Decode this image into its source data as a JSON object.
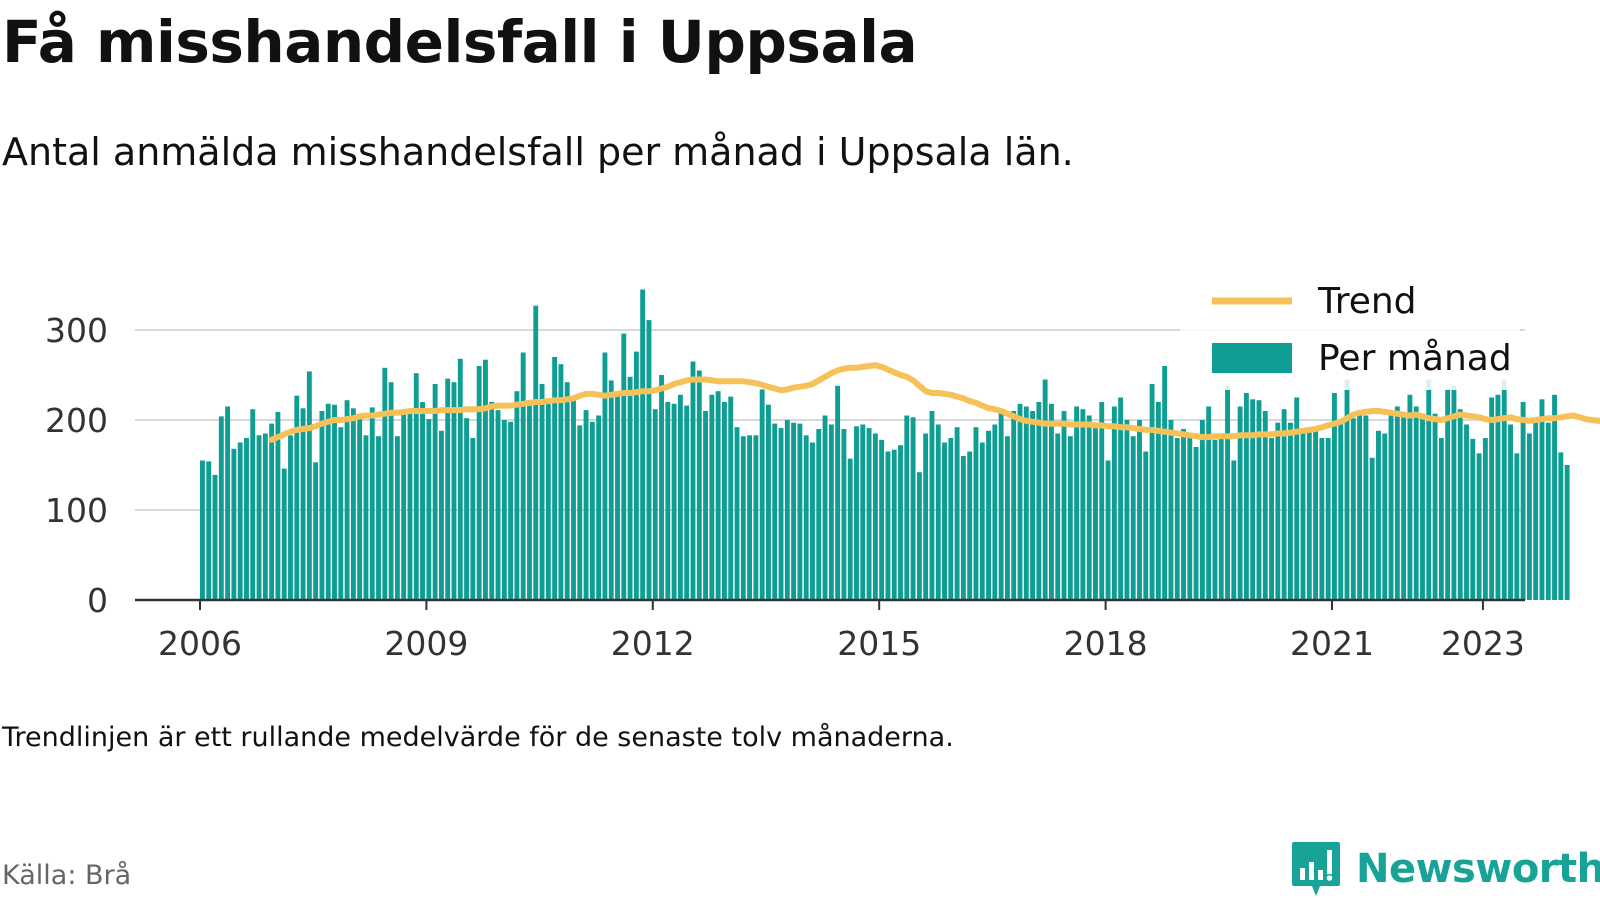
{
  "title": "Få misshandelsfall i Uppsala",
  "subtitle": "Antal anmälda misshandelsfall per månad i Uppsala län.",
  "note": "Trendlinjen är ett rullande medelvärde för de senaste tolv månaderna.",
  "source": "Källa: Brå",
  "brand": {
    "name": "Newsworthy",
    "icon": "newsworthy-logo-icon"
  },
  "colors": {
    "bars": "#0f9e94",
    "trend": "#f7c15a",
    "grid": "#d8d8d8",
    "axis": "#333333",
    "brand": "#17a398"
  },
  "chart_data": {
    "type": "bar",
    "title": "Få misshandelsfall i Uppsala",
    "subtitle": "Antal anmälda misshandelsfall per månad i Uppsala län.",
    "xlabel": "",
    "ylabel": "",
    "x_ticks": [
      "2006",
      "2009",
      "2012",
      "2015",
      "2018",
      "2021",
      "2023"
    ],
    "y_ticks": [
      "0",
      "100",
      "200",
      "300"
    ],
    "ylim": [
      0,
      345
    ],
    "start_month": "2006-01",
    "grid": true,
    "legend": {
      "position": "top-right",
      "entries": [
        "Trend",
        "Per månad"
      ]
    },
    "series": [
      {
        "name": "Per månad",
        "type": "bar",
        "color": "#0f9e94",
        "values": [
          155,
          154,
          139,
          204,
          215,
          168,
          175,
          180,
          212,
          183,
          185,
          196,
          209,
          146,
          183,
          227,
          213,
          254,
          153,
          210,
          218,
          217,
          192,
          222,
          213,
          207,
          183,
          214,
          182,
          258,
          242,
          182,
          206,
          211,
          252,
          220,
          201,
          240,
          188,
          246,
          242,
          268,
          202,
          180,
          260,
          267,
          220,
          211,
          200,
          198,
          232,
          275,
          220,
          327,
          240,
          218,
          270,
          262,
          242,
          225,
          194,
          211,
          198,
          205,
          275,
          244,
          230,
          296,
          248,
          276,
          345,
          311,
          212,
          250,
          220,
          218,
          228,
          216,
          265,
          255,
          210,
          228,
          232,
          220,
          226,
          192,
          182,
          183,
          183,
          234,
          217,
          196,
          191,
          200,
          197,
          196,
          183,
          175,
          190,
          205,
          195,
          238,
          190,
          157,
          193,
          195,
          191,
          185,
          178,
          165,
          167,
          172,
          205,
          203,
          142,
          185,
          210,
          195,
          175,
          180,
          192,
          160,
          165,
          192,
          175,
          188,
          195,
          212,
          182,
          210,
          218,
          215,
          210,
          220,
          245,
          218,
          185,
          210,
          182,
          215,
          212,
          205,
          196,
          220,
          155,
          215,
          225,
          200,
          182,
          200,
          165,
          240,
          220,
          260,
          200,
          180,
          190,
          185,
          170,
          200,
          215,
          178,
          185,
          238,
          155,
          215,
          230,
          223,
          222,
          210,
          180,
          197,
          212,
          197,
          225,
          190,
          189,
          188,
          180,
          180,
          230,
          200,
          245,
          202,
          210,
          205,
          158,
          188,
          185,
          210,
          215,
          207,
          228,
          215,
          207,
          245,
          207,
          180,
          235,
          238,
          212,
          195,
          179,
          163,
          180,
          225,
          228,
          245,
          195,
          163,
          220,
          185,
          197,
          223,
          197,
          228,
          164,
          150
        ]
      },
      {
        "name": "Trend",
        "type": "line",
        "color": "#f7c15a",
        "start_index": 11,
        "values": [
          178,
          181,
          184,
          187,
          189,
          190,
          191,
          193,
          196,
          198,
          200,
          200,
          201,
          202,
          204,
          205,
          205,
          206,
          207,
          208,
          208,
          209,
          210,
          210,
          210,
          210,
          210,
          211,
          211,
          211,
          211,
          212,
          212,
          212,
          213,
          215,
          216,
          216,
          216,
          217,
          218,
          219,
          220,
          220,
          221,
          222,
          222,
          223,
          224,
          227,
          229,
          229,
          228,
          227,
          228,
          229,
          230,
          230,
          231,
          232,
          232,
          233,
          235,
          237,
          240,
          242,
          244,
          245,
          245,
          245,
          244,
          243,
          243,
          243,
          243,
          243,
          242,
          241,
          239,
          237,
          235,
          233,
          234,
          236,
          237,
          238,
          240,
          244,
          248,
          252,
          255,
          257,
          258,
          258,
          259,
          260,
          261,
          259,
          256,
          253,
          250,
          248,
          244,
          238,
          232,
          230,
          230,
          229,
          228,
          226,
          224,
          221,
          219,
          216,
          213,
          212,
          210,
          207,
          204,
          201,
          199,
          198,
          197,
          196,
          196,
          196,
          196,
          195,
          195,
          195,
          195,
          194,
          194,
          193,
          193,
          192,
          192,
          191,
          190,
          189,
          189,
          188,
          187,
          186,
          185,
          184,
          183,
          182,
          181,
          181,
          182,
          182,
          182,
          182,
          183,
          183,
          183,
          184,
          184,
          184,
          185,
          185,
          186,
          187,
          188,
          189,
          190,
          192,
          194,
          196,
          198,
          202,
          206,
          208,
          209,
          210,
          210,
          209,
          208,
          207,
          206,
          205,
          206,
          204,
          202,
          201,
          200,
          202,
          204,
          206,
          205,
          204,
          203,
          201,
          200,
          201,
          202,
          203,
          201,
          200,
          199,
          200,
          201,
          202,
          202,
          203,
          204,
          205,
          203,
          201,
          200,
          199,
          200
        ]
      }
    ]
  }
}
